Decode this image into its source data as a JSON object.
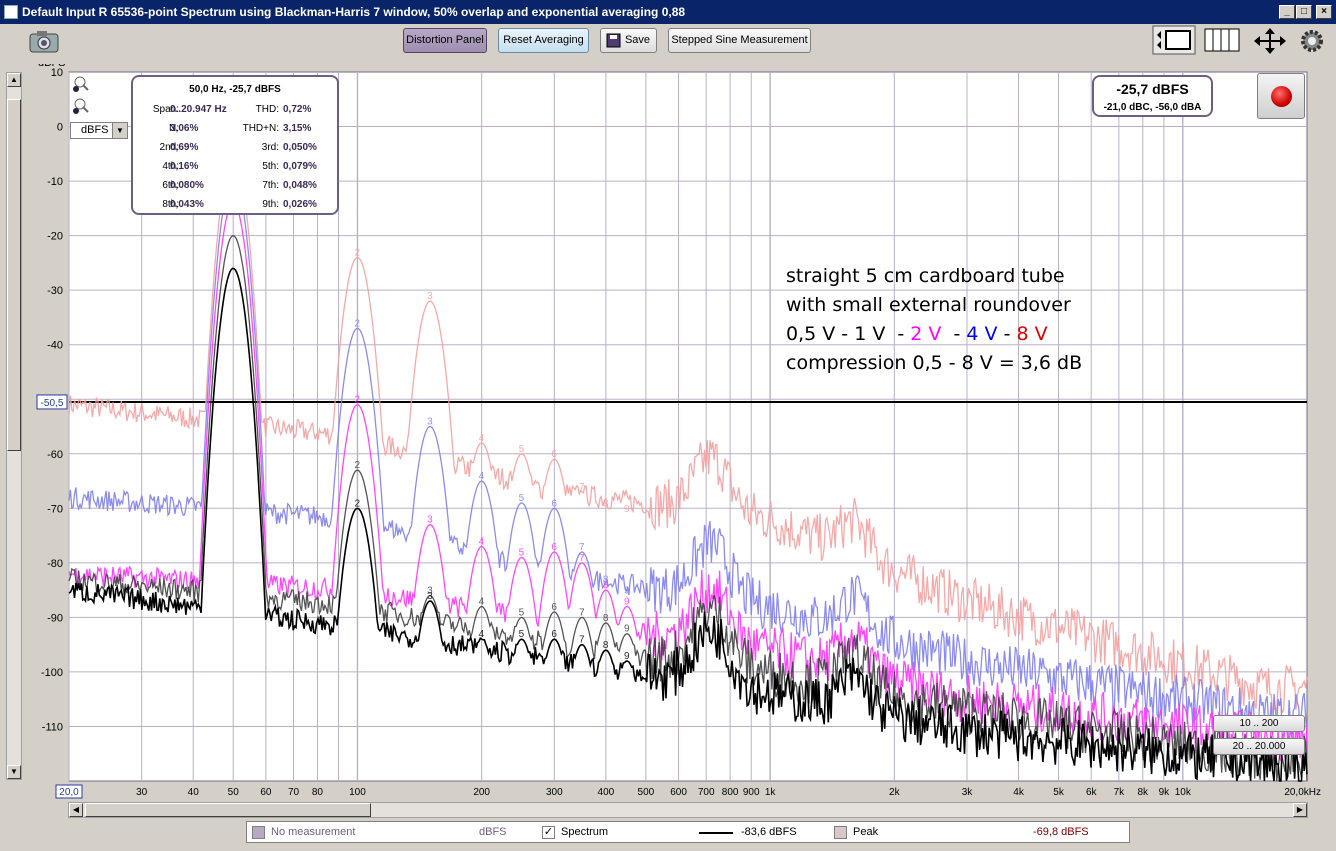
{
  "window": {
    "title": "Default Input R 65536-point Spectrum using Blackman-Harris 7 window, 50% overlap and exponential averaging 0,88",
    "min_glyph": "_",
    "max_glyph": "□",
    "close_glyph": "×"
  },
  "toolbar": {
    "distortion_panel": "Distortion Panel",
    "reset_averaging": "Reset Averaging",
    "save": "Save",
    "stepped_sine": "Stepped Sine Measurement"
  },
  "yaxis": {
    "unit": "dBFS",
    "ticks": [
      "10",
      "0",
      "-10",
      "-20",
      "-30",
      "-40",
      "-60",
      "-70",
      "-80",
      "-90",
      "-100",
      "-110"
    ],
    "cursor_label": "-50,5",
    "units_select": "dBFS"
  },
  "xaxis": {
    "ticks": [
      "30",
      "40",
      "50",
      "60",
      "70",
      "80",
      "100",
      "200",
      "300",
      "400",
      "500",
      "600",
      "700",
      "800",
      "900",
      "1k",
      "2k",
      "3k",
      "4k",
      "5k",
      "6k",
      "7k",
      "8k",
      "9k",
      "10k",
      "20,0kHz"
    ],
    "start_label": "20,0"
  },
  "info_panel": {
    "header": "50,0 Hz, -25,7 dBFS",
    "rows": [
      {
        "k1": "Span:",
        "v1": "0..20.947 Hz",
        "k2": "THD:",
        "v2": "0,72%"
      },
      {
        "k1": "N:",
        "v1": "3,06%",
        "k2": "THD+N:",
        "v2": "3,15%"
      },
      {
        "k1": "2nd:",
        "v1": "0,69%",
        "k2": "3rd:",
        "v2": "0,050%"
      },
      {
        "k1": "4th:",
        "v1": "0,16%",
        "k2": "5th:",
        "v2": "0,079%"
      },
      {
        "k1": "6th:",
        "v1": "0,080%",
        "k2": "7th:",
        "v2": "0,048%"
      },
      {
        "k1": "8th:",
        "v1": "0,043%",
        "k2": "9th:",
        "v2": "0,026%"
      }
    ]
  },
  "level_panel": {
    "main": "-25,7 dBFS",
    "sub": "-21,0 dBC, -56,0 dBA"
  },
  "range_buttons": {
    "r1": "10 .. 200",
    "r2": "20 .. 20.000"
  },
  "annotation": {
    "line1": "straight 5 cm cardboard tube",
    "line2": "with small external roundover",
    "line3_a": "0,5 V - 1 V  - ",
    "line3_b": "2 V",
    "line3_c": "  - ",
    "line3_d": "4 V",
    "line3_e": " - ",
    "line3_f": "8 V",
    "line4": "compression 0,5 - 8 V = 3,6 dB"
  },
  "colors": {
    "v05": "#000000",
    "v1": "#404040",
    "v2": "#ff33ff",
    "v4": "#8080ee",
    "v8": "#f5a0a0",
    "accent": "#6e5f82",
    "red_text": "#e00000",
    "magenta_text": "#ff00ff",
    "blue_text": "#0000ee"
  },
  "legend": {
    "no_measurement": "No measurement",
    "unit1": "dBFS",
    "spectrum": "Spectrum",
    "spectrum_value": "-83,6 dBFS",
    "peak": "Peak",
    "peak_value": "-69,8 dBFS",
    "spectrum_check": "✓"
  },
  "chart_data": {
    "type": "line",
    "x_scale": "log",
    "xlim": [
      20,
      20000
    ],
    "ylim": [
      -120,
      10
    ],
    "ylabel": "dBFS",
    "fundamental_hz": 50,
    "series": [
      {
        "name": "0,5 V",
        "fundamental_db": -26,
        "harmonics_db": [
          -70,
          -87,
          -94,
          -94,
          -94,
          -95,
          -96,
          -98
        ],
        "floor_db": [
          -85,
          -92,
          -98,
          -104,
          -111,
          -117
        ]
      },
      {
        "name": "1 V",
        "fundamental_db": -20,
        "harmonics_db": [
          -63,
          -86,
          -88,
          -90,
          -89,
          -90,
          -91,
          -93
        ],
        "floor_db": [
          -83,
          -88,
          -95,
          -100,
          -107,
          -116
        ]
      },
      {
        "name": "2 V",
        "fundamental_db": -14,
        "harmonics_db": [
          -51,
          -73,
          -77,
          -79,
          -78,
          -80,
          -85,
          -88
        ],
        "floor_db": [
          -82,
          -85,
          -91,
          -96,
          -105,
          -112
        ]
      },
      {
        "name": "4 V",
        "fundamental_db": -9,
        "harmonics_db": [
          -37,
          -55,
          -65,
          -69,
          -70,
          -78,
          -84,
          -86
        ],
        "floor_db": [
          -68,
          -72,
          -82,
          -88,
          -98,
          -108
        ]
      },
      {
        "name": "8 V",
        "fundamental_db": -5,
        "harmonics_db": [
          -24,
          -32,
          -58,
          -60,
          -61,
          -67,
          -70,
          -71
        ],
        "floor_db": [
          -51,
          -57,
          -67,
          -72,
          -87,
          -103
        ]
      }
    ]
  }
}
